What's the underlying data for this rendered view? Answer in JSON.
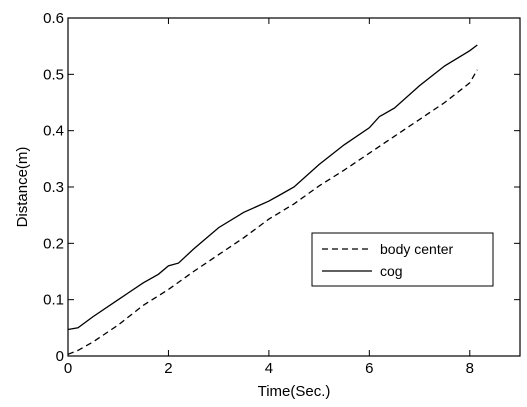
{
  "chart_data": {
    "type": "line",
    "title": "",
    "xlabel": "Time(Sec.)",
    "ylabel": "Distance(m)",
    "xlim": [
      0,
      9
    ],
    "ylim": [
      0,
      0.6
    ],
    "xticks": [
      0,
      2,
      4,
      6,
      8
    ],
    "yticks": [
      0,
      0.1,
      0.2,
      0.3,
      0.4,
      0.5,
      0.6
    ],
    "xtick_labels": [
      "0",
      "2",
      "4",
      "6",
      "8"
    ],
    "ytick_labels": [
      "0",
      "0.1",
      "0.2",
      "0.3",
      "0.4",
      "0.5",
      "0.6"
    ],
    "grid": false,
    "legend_position": "middle-right",
    "series": [
      {
        "name": "body center",
        "line_style": "dashed",
        "color": "#000000",
        "x": [
          0.0,
          0.2,
          0.5,
          1.0,
          1.5,
          2.0,
          2.5,
          3.0,
          3.5,
          4.0,
          4.5,
          5.0,
          5.5,
          6.0,
          6.5,
          7.0,
          7.5,
          8.0,
          8.15
        ],
        "y": [
          0.003,
          0.01,
          0.025,
          0.055,
          0.09,
          0.118,
          0.15,
          0.18,
          0.21,
          0.243,
          0.27,
          0.302,
          0.33,
          0.36,
          0.39,
          0.42,
          0.45,
          0.485,
          0.508
        ]
      },
      {
        "name": "cog",
        "line_style": "solid",
        "color": "#000000",
        "x": [
          0.0,
          0.2,
          0.5,
          1.0,
          1.5,
          1.8,
          2.0,
          2.2,
          2.5,
          3.0,
          3.5,
          4.0,
          4.2,
          4.5,
          5.0,
          5.5,
          6.0,
          6.2,
          6.5,
          7.0,
          7.5,
          8.0,
          8.15
        ],
        "y": [
          0.047,
          0.05,
          0.07,
          0.1,
          0.13,
          0.145,
          0.16,
          0.165,
          0.19,
          0.228,
          0.255,
          0.275,
          0.285,
          0.3,
          0.34,
          0.375,
          0.405,
          0.425,
          0.44,
          0.48,
          0.515,
          0.542,
          0.552
        ]
      }
    ]
  }
}
